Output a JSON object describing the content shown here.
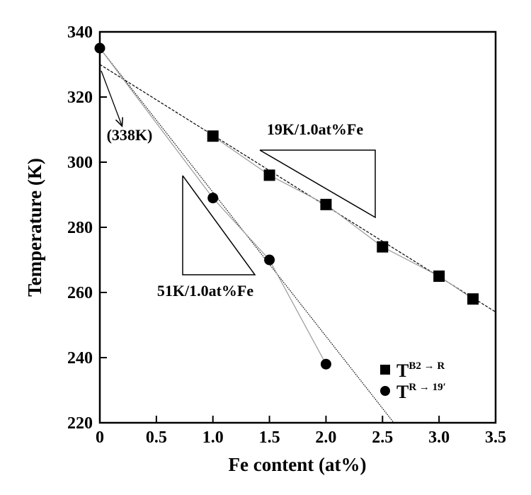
{
  "chart_data": {
    "type": "scatter",
    "x_label": "Fe content (at%)",
    "y_label": "Temperature (K)",
    "xlim": [
      0,
      3.5
    ],
    "ylim": [
      220,
      340
    ],
    "xticks": [
      0,
      0.5,
      {
        "value": 1,
        "label": "1.0"
      },
      1.5,
      {
        "value": 2,
        "label": "2.0"
      },
      2.5,
      {
        "value": 3,
        "label": "3.0"
      },
      3.5
    ],
    "yticks": [
      220,
      240,
      260,
      280,
      300,
      320,
      340
    ],
    "series": [
      {
        "name": "T",
        "name_sup": "B2 → R",
        "marker": "square",
        "color": "#000000",
        "x": [
          1,
          1.5,
          2,
          2.5,
          3,
          3.3
        ],
        "values": [
          308,
          296,
          287,
          274,
          265,
          258
        ]
      },
      {
        "name": "T",
        "name_sup": "R → 19′",
        "marker": "circle",
        "color": "#000000",
        "x": [
          0,
          1,
          1.5,
          2
        ],
        "values": [
          335,
          289,
          270,
          238
        ]
      }
    ],
    "fit_lines": [
      {
        "style": "dashed",
        "x": [
          0,
          3.5
        ],
        "values": [
          330,
          254
        ]
      },
      {
        "style": "dotted",
        "x": [
          0,
          2.6
        ],
        "values": [
          335,
          220
        ]
      }
    ],
    "annotations": [
      "19K/1.0at%Fe",
      "51K/1.0at%Fe",
      "(338K)"
    ]
  }
}
